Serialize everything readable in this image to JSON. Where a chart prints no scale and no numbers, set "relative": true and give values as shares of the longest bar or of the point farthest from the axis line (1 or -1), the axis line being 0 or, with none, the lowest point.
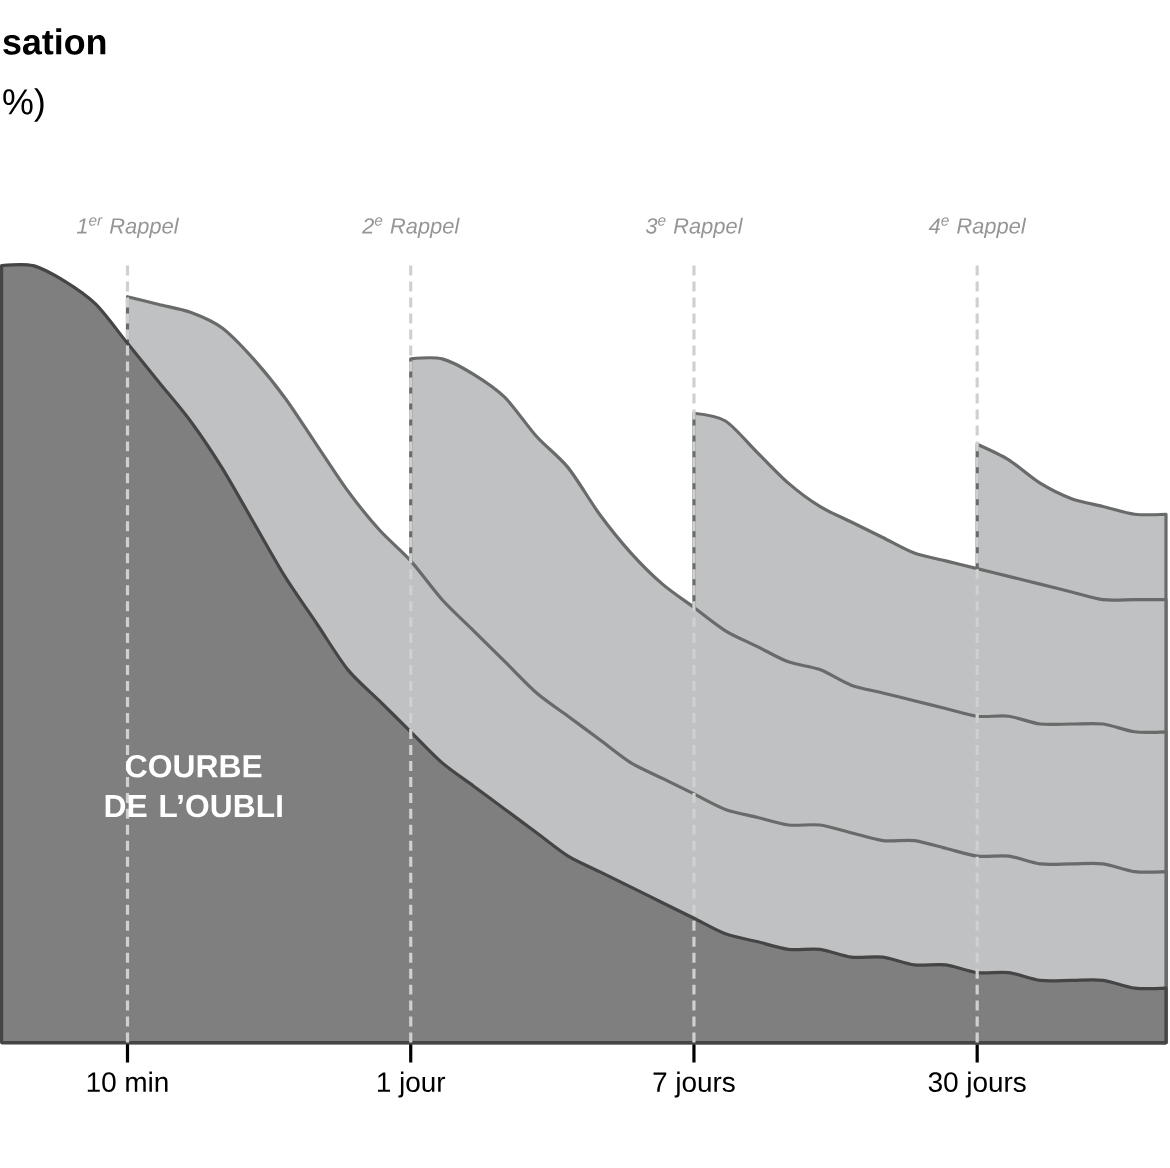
{
  "chart_data": {
    "type": "area",
    "title": "sation",
    "subtitle": "%)",
    "relative": true,
    "categories": [
      null,
      null,
      null,
      null,
      "10 min",
      null,
      null,
      null,
      null,
      null,
      null,
      null,
      null,
      "1 jour",
      null,
      null,
      null,
      null,
      null,
      null,
      null,
      null,
      "7 jours",
      null,
      null,
      null,
      null,
      null,
      null,
      null,
      null,
      "30 jours",
      null,
      null,
      null,
      null,
      null,
      null
    ],
    "series": [
      {
        "name": "COURBE DE L’OUBLI",
        "color": "#7f7f80",
        "values": [
          1.0,
          1.0,
          0.98,
          0.95,
          0.9,
          0.85,
          0.8,
          0.74,
          0.67,
          0.6,
          0.54,
          0.48,
          0.44,
          0.4,
          0.36,
          0.33,
          0.3,
          0.27,
          0.24,
          0.22,
          0.2,
          0.18,
          0.16,
          0.14,
          0.13,
          0.12,
          0.12,
          0.11,
          0.11,
          0.1,
          0.1,
          0.09,
          0.09,
          0.08,
          0.08,
          0.08,
          0.07,
          0.07
        ]
      },
      {
        "color": "#c0c1c2",
        "values": [
          null,
          null,
          null,
          null,
          0.96,
          0.95,
          0.94,
          0.92,
          0.88,
          0.83,
          0.77,
          0.71,
          0.66,
          0.62,
          0.57,
          0.53,
          0.49,
          0.45,
          0.42,
          0.39,
          0.36,
          0.34,
          0.32,
          0.3,
          0.29,
          0.28,
          0.28,
          0.27,
          0.26,
          0.26,
          0.25,
          0.24,
          0.24,
          0.23,
          0.23,
          0.23,
          0.22,
          0.22
        ]
      },
      {
        "color": "#c0c1c2",
        "values": [
          null,
          null,
          null,
          null,
          null,
          null,
          null,
          null,
          null,
          null,
          null,
          null,
          null,
          0.88,
          0.88,
          0.86,
          0.83,
          0.78,
          0.74,
          0.68,
          0.63,
          0.59,
          0.56,
          0.53,
          0.51,
          0.49,
          0.48,
          0.46,
          0.45,
          0.44,
          0.43,
          0.42,
          0.42,
          0.41,
          0.41,
          0.41,
          0.4,
          0.4
        ]
      },
      {
        "color": "#c0c1c2",
        "values": [
          null,
          null,
          null,
          null,
          null,
          null,
          null,
          null,
          null,
          null,
          null,
          null,
          null,
          null,
          null,
          null,
          null,
          null,
          null,
          null,
          null,
          null,
          0.81,
          0.8,
          0.76,
          0.72,
          0.69,
          0.67,
          0.65,
          0.63,
          0.62,
          0.61,
          0.6,
          0.59,
          0.58,
          0.57,
          0.57,
          0.57
        ]
      },
      {
        "color": "#c0c1c2",
        "values": [
          null,
          null,
          null,
          null,
          null,
          null,
          null,
          null,
          null,
          null,
          null,
          null,
          null,
          null,
          null,
          null,
          null,
          null,
          null,
          null,
          null,
          null,
          null,
          null,
          null,
          null,
          null,
          null,
          null,
          null,
          null,
          0.77,
          0.75,
          0.72,
          0.7,
          0.69,
          0.68,
          0.68
        ]
      }
    ],
    "ref_lines": [
      {
        "axis": "x",
        "value": "10 min",
        "label": "1$^{er}$ Rappel",
        "color": "#d0d0d0",
        "line_style": "dashed"
      },
      {
        "axis": "x",
        "value": "1 jour",
        "label": "2$^{e}$ Rappel",
        "color": "#d0d0d0",
        "line_style": "dashed"
      },
      {
        "axis": "x",
        "value": "7 jours",
        "label": "3$^{e}$ Rappel",
        "color": "#d0d0d0",
        "line_style": "dashed"
      },
      {
        "axis": "x",
        "value": "30 jours",
        "label": "4$^{e}$ Rappel",
        "color": "#d0d0d0",
        "line_style": "dashed"
      }
    ],
    "grid": false
  }
}
